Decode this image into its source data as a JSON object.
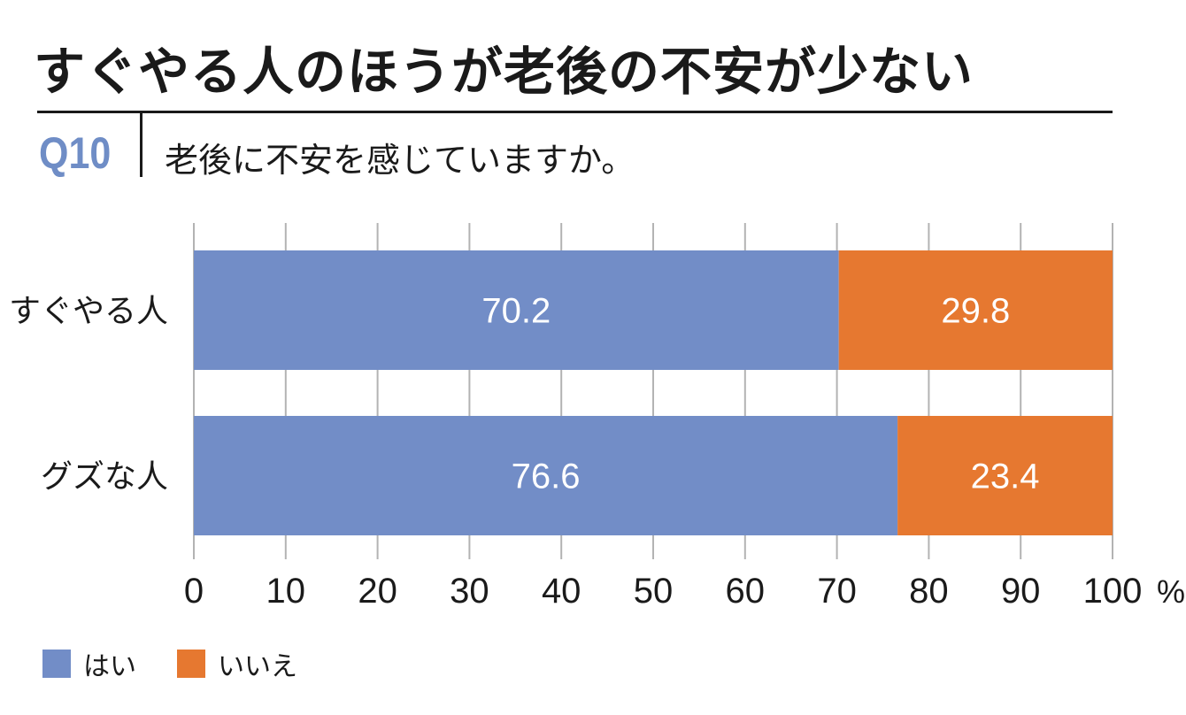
{
  "headline": "すぐやる人のほうが老後の不安が少ない",
  "question": {
    "number": "Q10",
    "text": "老後に不安を感じていますか。"
  },
  "colors": {
    "yes": "#728dc7",
    "no": "#e67830",
    "grid": "#b3b3b3",
    "text": "#1a1a1a"
  },
  "chart_data": {
    "type": "bar",
    "orientation": "horizontal",
    "stacked": true,
    "categories": [
      "すぐやる人",
      "グズな人"
    ],
    "series": [
      {
        "name": "はい",
        "values": [
          70.2,
          76.6
        ],
        "labels": [
          "70.2",
          "76.6"
        ]
      },
      {
        "name": "いいえ",
        "values": [
          29.8,
          23.4
        ],
        "labels": [
          "29.8",
          "23.4"
        ]
      }
    ],
    "xlim": [
      0,
      100
    ],
    "xticks": [
      "0",
      "10",
      "20",
      "30",
      "40",
      "50",
      "60",
      "70",
      "80",
      "90",
      "100"
    ],
    "xunit": "%",
    "grid": true,
    "legend": "bottom-left"
  }
}
